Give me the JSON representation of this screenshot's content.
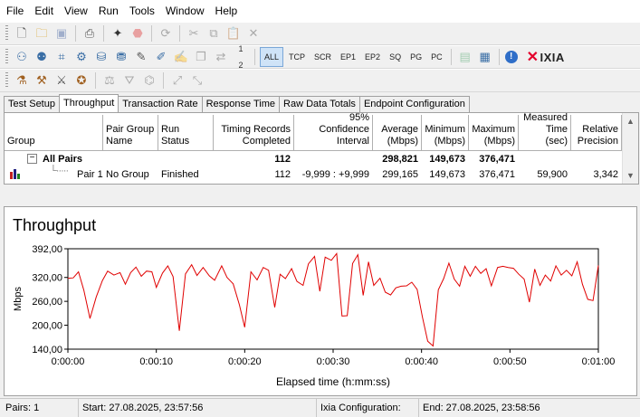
{
  "menu": [
    "File",
    "Edit",
    "View",
    "Run",
    "Tools",
    "Window",
    "Help"
  ],
  "toolbar": {
    "protocols": [
      "ALL",
      "TCP",
      "SCR",
      "EP1",
      "EP2",
      "SQ",
      "PG",
      "PC"
    ],
    "logo_text": "IXIA"
  },
  "tabs": [
    "Test Setup",
    "Throughput",
    "Transaction Rate",
    "Response Time",
    "Raw Data Totals",
    "Endpoint Configuration"
  ],
  "active_tab": 1,
  "table": {
    "headers": {
      "group": "Group",
      "pair_group_name": [
        "Pair Group",
        "Name"
      ],
      "run_status": "Run Status",
      "timing_records": [
        "Timing Records",
        "Completed"
      ],
      "confidence": [
        "95% Confidence",
        "Interval"
      ],
      "average": [
        "Average",
        "(Mbps)"
      ],
      "minimum": [
        "Minimum",
        "(Mbps)"
      ],
      "maximum": [
        "Maximum",
        "(Mbps)"
      ],
      "measured_time": [
        "Measured",
        "Time (sec)"
      ],
      "relative_precision": [
        "Relative",
        "Precision"
      ]
    },
    "summary": {
      "label": "All Pairs",
      "expand_glyph": "−",
      "timing_records": "112",
      "average": "298,821",
      "minimum": "149,673",
      "maximum": "376,471"
    },
    "rows": [
      {
        "group": "Pair 1",
        "pair_group_name": "No Group",
        "run_status": "Finished",
        "timing_records": "112",
        "confidence": "-9,999 : +9,999",
        "average": "299,165",
        "minimum": "149,673",
        "maximum": "376,471",
        "measured_time": "59,900",
        "relative_precision": "3,342"
      }
    ]
  },
  "chart_title": "Throughput",
  "chart_data": {
    "type": "line",
    "title": "Throughput",
    "xlabel": "Elapsed time (h:mm:ss)",
    "ylabel": "Mbps",
    "x_ticks": [
      "0:00:00",
      "0:00:10",
      "0:00:20",
      "0:00:30",
      "0:00:40",
      "0:00:50",
      "0:01:00"
    ],
    "y_ticks": [
      "140,00",
      "200,00",
      "260,00",
      "320,00",
      "392,00"
    ],
    "xlim": [
      0,
      60
    ],
    "ylim": [
      140,
      392
    ],
    "grid": false,
    "color": "#e00000",
    "series": [
      {
        "x": [
          0,
          0.6,
          1.2,
          1.8,
          2.5,
          3.2,
          3.9,
          4.5,
          5.2,
          5.9,
          6.5,
          7.1,
          7.7,
          8.3,
          8.9,
          9.5,
          10.0,
          10.7,
          11.3,
          11.9,
          12.6,
          13.3,
          14.0,
          14.6,
          15.3,
          16.0,
          16.6,
          17.4,
          18.0,
          18.7,
          19.4,
          20.0,
          20.7,
          21.4,
          22.1,
          22.7,
          23.4,
          24.0,
          24.6,
          25.3,
          25.9,
          26.6,
          27.2,
          27.9,
          28.5,
          29.1,
          29.8,
          30.4,
          31.0,
          31.6,
          32.2,
          32.8,
          33.4,
          34.0,
          34.6,
          35.3,
          35.9,
          36.5,
          37.1,
          37.7,
          38.3,
          38.9,
          39.5,
          40.1,
          40.7,
          41.3,
          41.9,
          42.5,
          43.1,
          43.7,
          44.3,
          44.9,
          45.5,
          46.1,
          46.7,
          47.3,
          47.9,
          48.6,
          49.2,
          49.8,
          50.4,
          51.0,
          51.6,
          52.2,
          52.8,
          53.4,
          54.0,
          54.6,
          55.2,
          55.8,
          56.4,
          57.0,
          57.6,
          58.2,
          58.8,
          59.4,
          60.0
        ],
        "y": [
          318,
          319,
          334,
          288,
          217,
          271,
          312,
          336,
          326,
          332,
          303,
          332,
          346,
          323,
          336,
          334,
          295,
          331,
          349,
          322,
          186,
          329,
          352,
          325,
          345,
          324,
          313,
          349,
          320,
          304,
          251,
          195,
          334,
          314,
          345,
          338,
          245,
          328,
          317,
          342,
          310,
          300,
          354,
          373,
          285,
          371,
          363,
          380,
          223,
          224,
          355,
          377,
          275,
          359,
          300,
          318,
          283,
          276,
          294,
          298,
          299,
          308,
          290,
          221,
          160,
          148,
          289,
          317,
          356,
          316,
          298,
          348,
          323,
          348,
          330,
          342,
          299,
          345,
          348,
          345,
          343,
          328,
          316,
          258,
          341,
          300,
          326,
          311,
          349,
          326,
          338,
          324,
          359,
          303,
          265,
          262,
          350
        ]
      }
    ]
  },
  "status": {
    "pairs": "Pairs: 1",
    "start": "Start: 27.08.2025, 23:57:56",
    "ixia_config": "Ixia Configuration:",
    "end": "End: 27.08.2025, 23:58:56"
  }
}
